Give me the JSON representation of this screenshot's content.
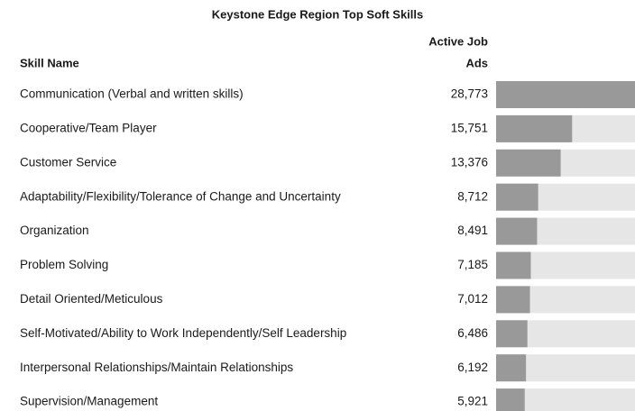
{
  "chart_data": {
    "type": "bar",
    "orientation": "horizontal",
    "title": "Keystone Edge Region Top Soft Skills",
    "category_header": "Skill Name",
    "value_header": [
      "Active Job",
      "Ads"
    ],
    "categories": [
      "Communication (Verbal and written skills)",
      "Cooperative/Team Player",
      "Customer Service",
      "Adaptability/Flexibility/Tolerance of Change and Uncertainty",
      "Organization",
      "Problem Solving",
      "Detail Oriented/Meticulous",
      "Self-Motivated/Ability to Work Independently/Self Leadership",
      "Interpersonal Relationships/Maintain Relationships",
      "Supervision/Management"
    ],
    "values": [
      28773,
      15751,
      13376,
      8712,
      8491,
      7185,
      7012,
      6486,
      6192,
      5921
    ],
    "value_labels": [
      "28,773",
      "15,751",
      "13,376",
      "8,712",
      "8,491",
      "7,185",
      "7,012",
      "6,486",
      "6,192",
      "5,921"
    ],
    "color": "#999999",
    "track_color": "#e6e6e6"
  }
}
